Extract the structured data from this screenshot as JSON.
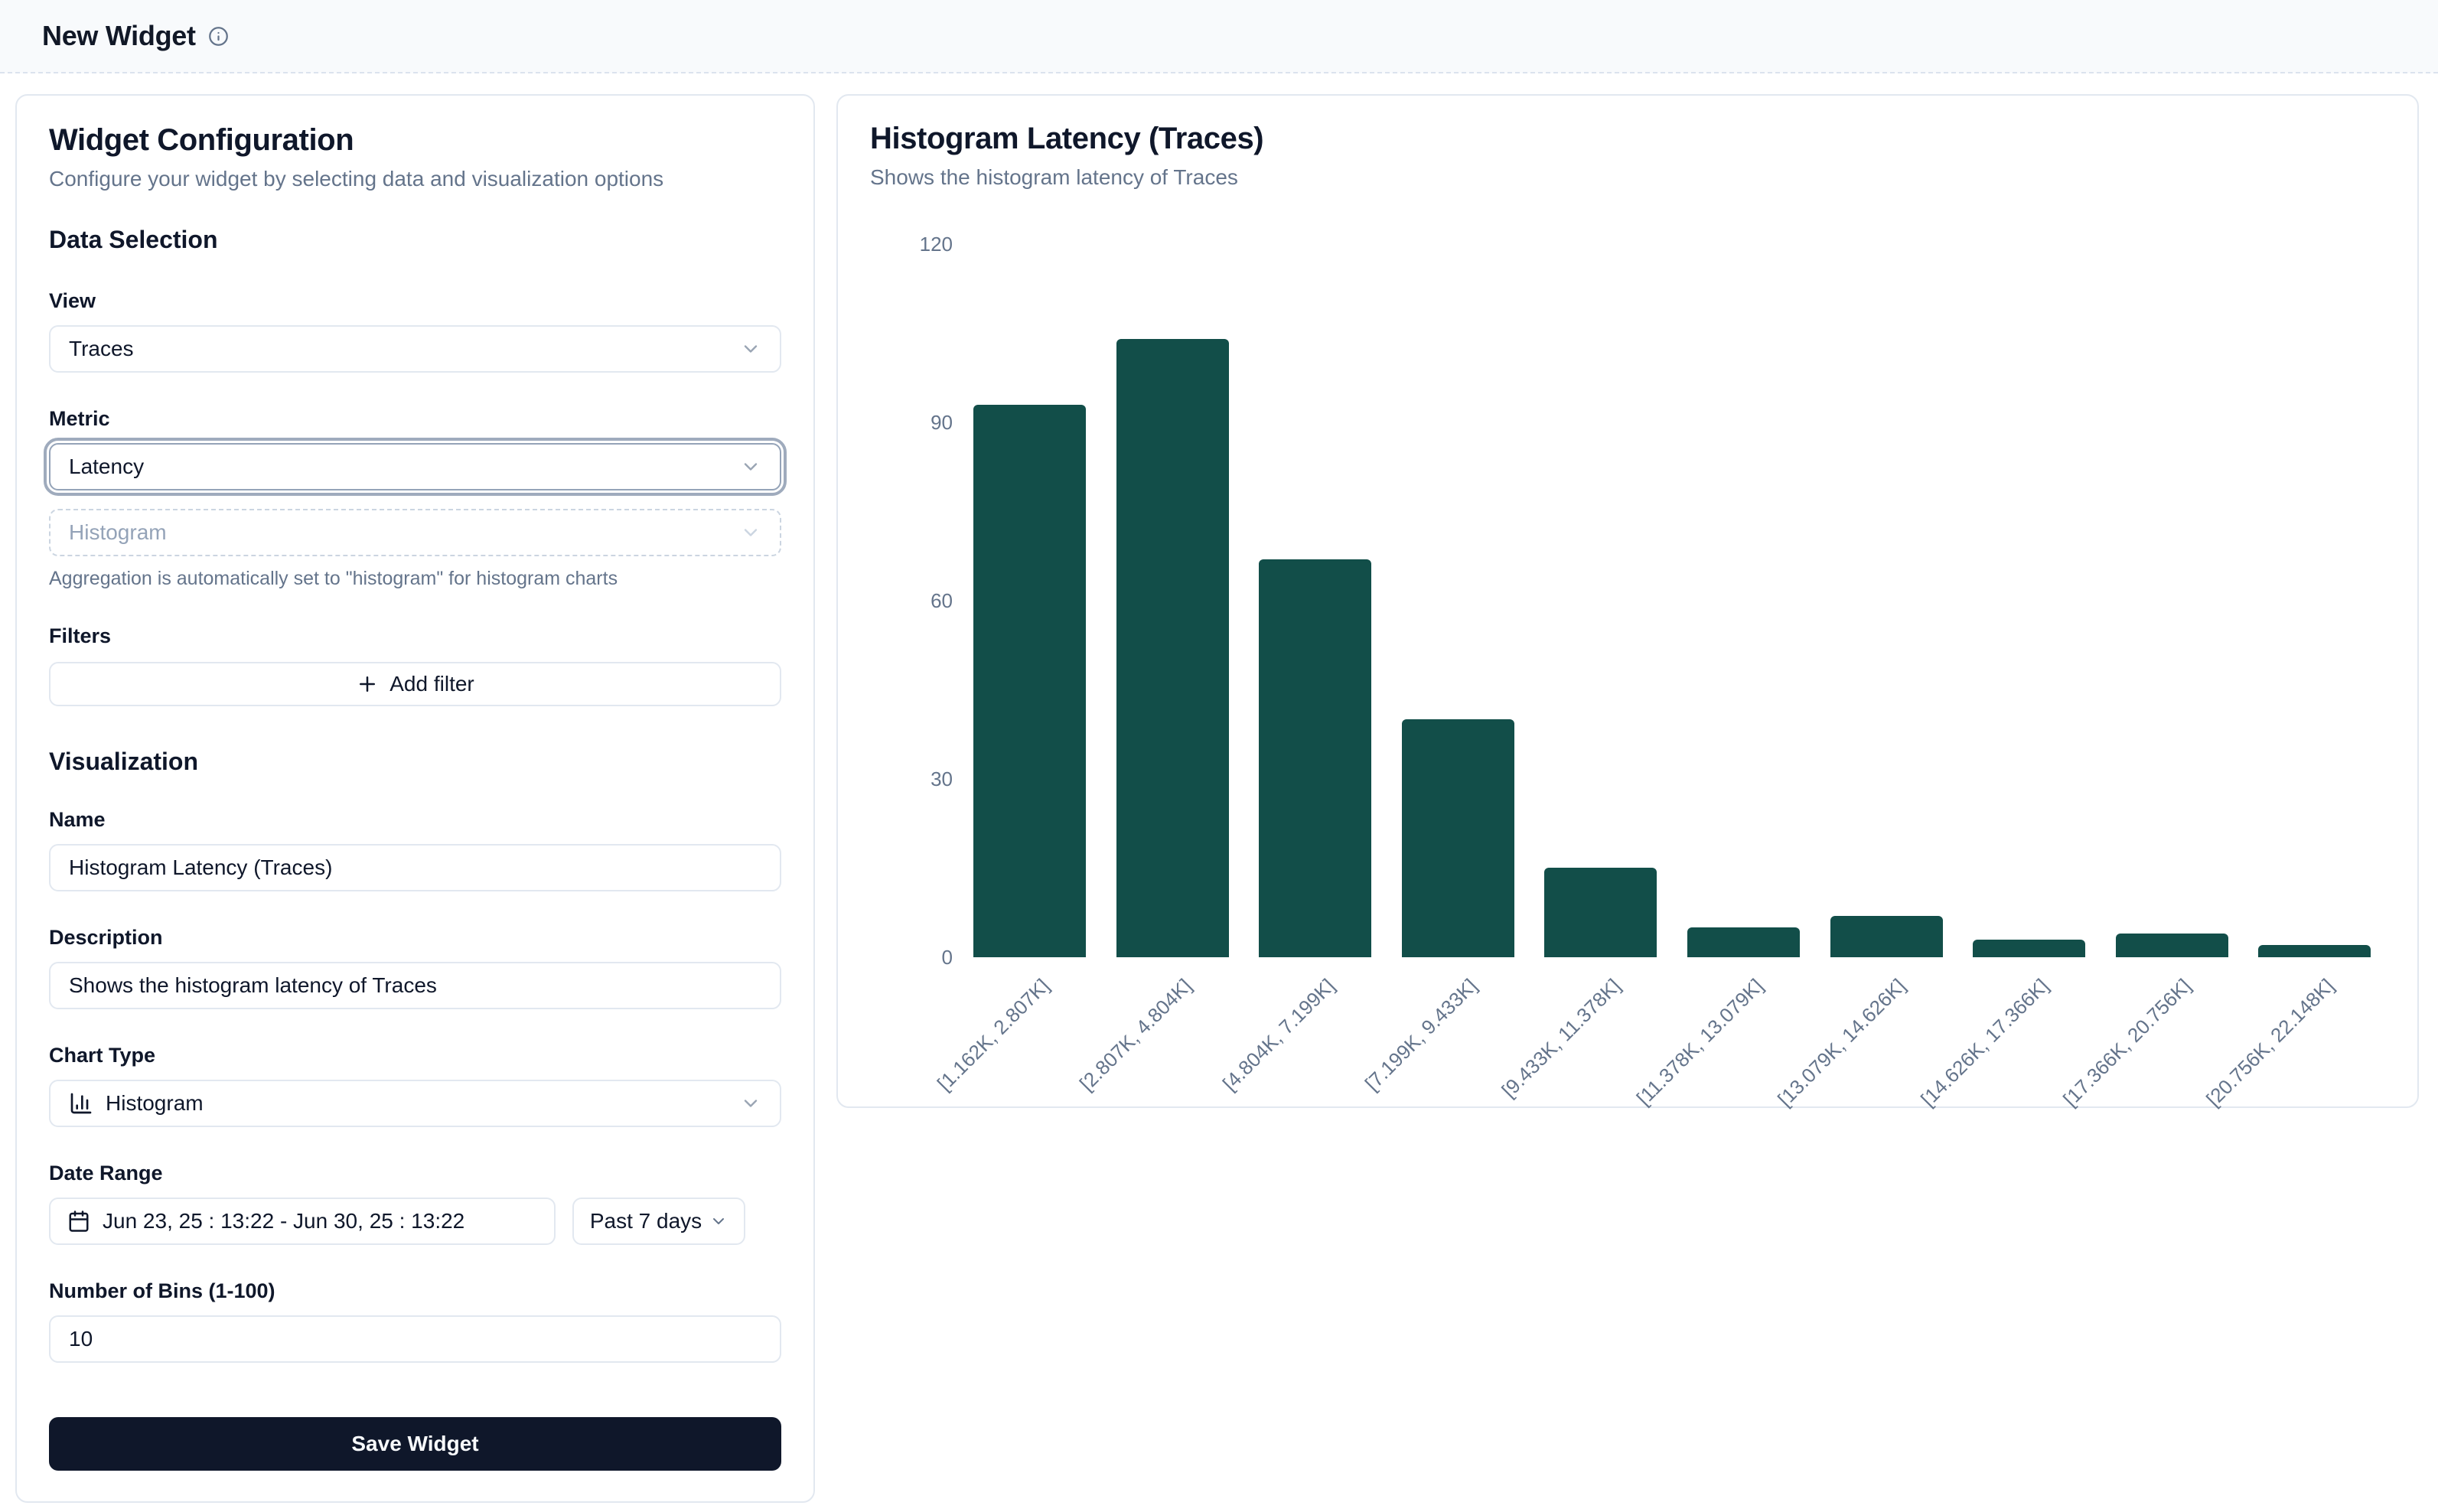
{
  "page": {
    "title": "New Widget"
  },
  "config_panel": {
    "title": "Widget Configuration",
    "subtitle": "Configure your widget by selecting data and visualization options",
    "data_section_heading": "Data Selection",
    "view": {
      "label": "View",
      "value": "Traces"
    },
    "metric": {
      "label": "Metric",
      "value": "Latency"
    },
    "aggregation": {
      "value": "Histogram",
      "helper": "Aggregation is automatically set to \"histogram\" for histogram charts"
    },
    "filters": {
      "label": "Filters",
      "add_button": "Add filter"
    },
    "visualization_section_heading": "Visualization",
    "name": {
      "label": "Name",
      "value": "Histogram Latency (Traces)"
    },
    "description": {
      "label": "Description",
      "value": "Shows the histogram latency of Traces"
    },
    "chart_type": {
      "label": "Chart Type",
      "value": "Histogram"
    },
    "date_range": {
      "label": "Date Range",
      "value": "Jun 23, 25 : 13:22 - Jun 30, 25 : 13:22",
      "preset": "Past 7 days"
    },
    "bins": {
      "label": "Number of Bins (1-100)",
      "value": "10"
    },
    "save_label": "Save Widget"
  },
  "chart_panel": {
    "title": "Histogram Latency (Traces)",
    "subtitle": "Shows the histogram latency of Traces"
  },
  "chart_data": {
    "type": "bar",
    "title": "Histogram Latency (Traces)",
    "subtitle": "Shows the histogram latency of Traces",
    "categories": [
      "[1.162K, 2.807K]",
      "[2.807K, 4.804K]",
      "[4.804K, 7.199K]",
      "[7.199K, 9.433K]",
      "[9.433K, 11.378K]",
      "[11.378K, 13.079K]",
      "[13.079K, 14.626K]",
      "[14.626K, 17.366K]",
      "[17.366K, 20.756K]",
      "[20.756K, 22.148K]"
    ],
    "values": [
      93,
      104,
      67,
      40,
      15,
      5,
      7,
      3,
      4,
      2
    ],
    "xlabel": "",
    "ylabel": "",
    "ylim": [
      0,
      120
    ],
    "yticks": [
      0,
      30,
      60,
      90,
      120
    ],
    "grid": false,
    "legend": "none",
    "bar_color": "#124e49",
    "tick_color": "#64748b",
    "x_label_rotation_deg": -45
  }
}
